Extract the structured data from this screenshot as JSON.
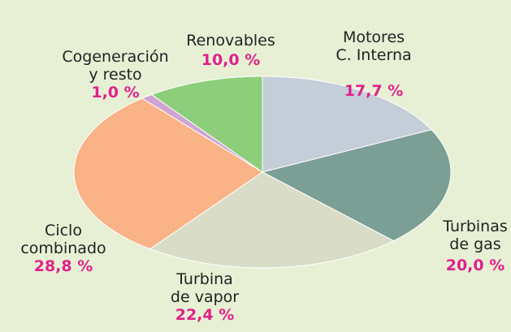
{
  "chart_data": {
    "type": "pie",
    "categories": [
      "Motores\nC. Interna",
      "Turbinas\nde gas",
      "Turbina\nde vapor",
      "Ciclo\ncombinado",
      "Cogeneración\ny resto",
      "Renovables"
    ],
    "values": [
      17.7,
      20.0,
      22.4,
      28.8,
      1.0,
      10.0
    ],
    "value_labels": [
      "17,7 %",
      "20,0 %",
      "22,4 %",
      "28,8 %",
      "1,0 %",
      "10,0 %"
    ],
    "colors": [
      "#c4ced8",
      "#7c9f95",
      "#d9ddc8",
      "#f9b386",
      "#cfa3d2",
      "#8dce7a"
    ]
  }
}
